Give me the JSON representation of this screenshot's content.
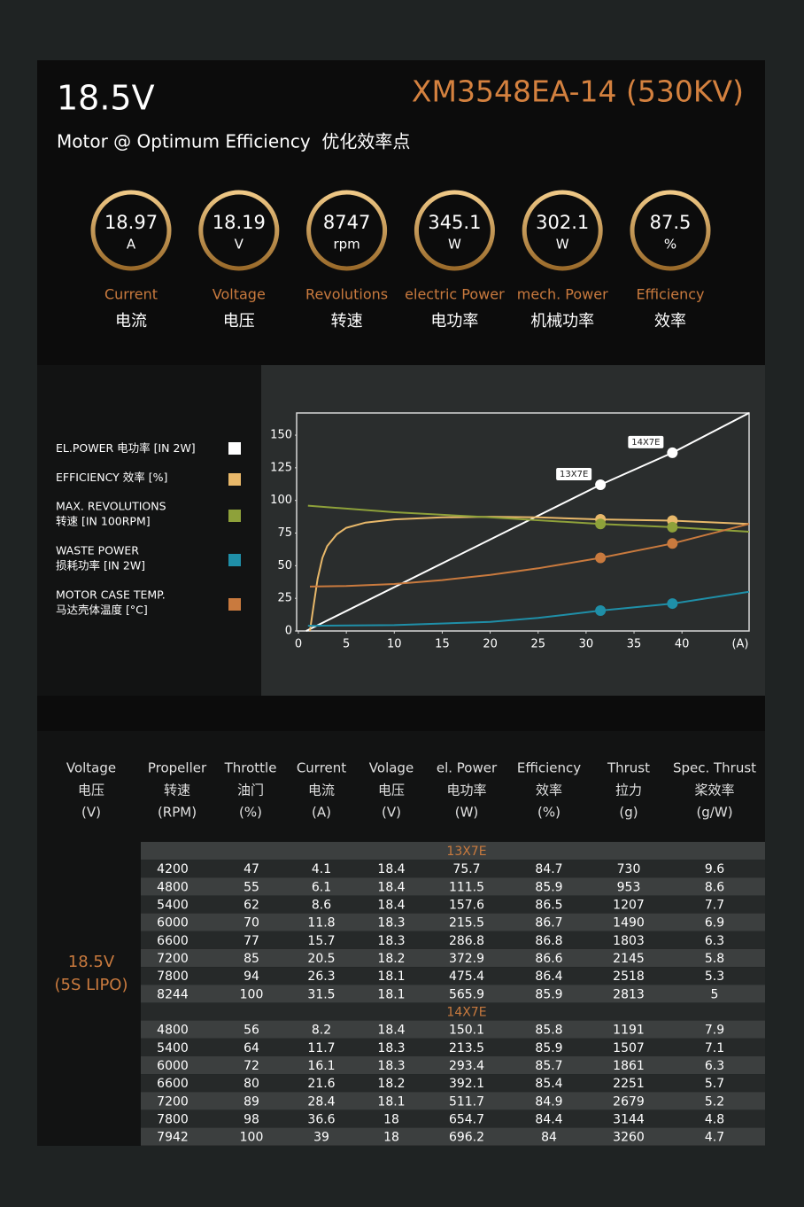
{
  "header": {
    "voltage": "18.5V",
    "model": "XM3548EA-14 (530KV)",
    "subtitle": "Motor @ Optimum Efficiency  优化效率点"
  },
  "gauges": [
    {
      "value": 18.97,
      "unit": "A",
      "label_en": "Current",
      "label_zh": "电流"
    },
    {
      "value": 18.19,
      "unit": "V",
      "label_en": "Voltage",
      "label_zh": "电压"
    },
    {
      "value": 8747,
      "unit": "rpm",
      "label_en": "Revolutions",
      "label_zh": "转速"
    },
    {
      "value": 345.1,
      "unit": "W",
      "label_en": "electric Power",
      "label_zh": "电功率"
    },
    {
      "value": 302.1,
      "unit": "W",
      "label_en": "mech. Power",
      "label_zh": "机械功率"
    },
    {
      "value": 87.5,
      "unit": "%",
      "label_en": "Efficiency",
      "label_zh": "效率"
    }
  ],
  "chart_data": {
    "type": "line",
    "xlim": [
      0,
      47
    ],
    "ylim": [
      0,
      167
    ],
    "xticks": [
      0,
      5,
      10,
      15,
      20,
      25,
      30,
      35,
      40
    ],
    "yticks": [
      0,
      25,
      50,
      75,
      100,
      125,
      150
    ],
    "x_label": "(A)",
    "marker_x": [
      31.5,
      39
    ],
    "annotations": [
      {
        "text": "13X7E",
        "x": 31.5,
        "y": 112
      },
      {
        "text": "14X7E",
        "x": 39,
        "y": 136.5
      }
    ],
    "series": [
      {
        "name": "EL.POWER 电功率 [IN 2W]",
        "color": "#ffffff",
        "x": [
          0.8,
          31.5,
          39,
          47
        ],
        "values": [
          0,
          112,
          136.5,
          167
        ]
      },
      {
        "name": "EFFICIENCY 效率 [%]",
        "color": "#e8b86a",
        "x": [
          1.2,
          1.6,
          2,
          2.5,
          3,
          4,
          5,
          7,
          10,
          15,
          20,
          25,
          31.5,
          39,
          47
        ],
        "values": [
          0,
          20,
          40,
          56,
          65,
          74,
          79,
          83,
          85.5,
          87,
          87.5,
          87,
          85.5,
          84.5,
          82
        ]
      },
      {
        "name": "MAX. REVOLUTIONS\n转速 [IN 100RPM]",
        "color": "#8ea13a",
        "x": [
          1,
          10,
          20,
          31.5,
          39,
          47
        ],
        "values": [
          96,
          91,
          87,
          82,
          79.5,
          76
        ]
      },
      {
        "name": "WASTE POWER\n损耗功率 [IN 2W]",
        "color": "#1f8fa8",
        "x": [
          1,
          10,
          20,
          25,
          31.5,
          39,
          47
        ],
        "values": [
          4,
          4.5,
          7,
          10,
          15.6,
          21,
          30
        ]
      },
      {
        "name": "MOTOR CASE TEMP.\n马达壳体温度 [°C]",
        "color": "#c97a3e",
        "x": [
          1.2,
          5,
          10,
          15,
          20,
          25,
          31.5,
          39,
          47
        ],
        "values": [
          34,
          34.5,
          36,
          39,
          43,
          48,
          56,
          67,
          82
        ]
      }
    ]
  },
  "table": {
    "headers": [
      [
        "Voltage",
        "电压",
        "(V)"
      ],
      [
        "Propeller",
        "转速",
        "(RPM)"
      ],
      [
        "Throttle",
        "油门",
        "(%)"
      ],
      [
        "Current",
        "电流",
        "(A)"
      ],
      [
        "Volage",
        "电压",
        "(V)"
      ],
      [
        "el. Power",
        "电功率",
        "(W)"
      ],
      [
        "Efficiency",
        "效率",
        "(%)"
      ],
      [
        "Thrust",
        "拉力",
        "(g)"
      ],
      [
        "Spec. Thrust",
        "桨效率",
        "(g/W)"
      ]
    ],
    "voltage_label": [
      "18.5V",
      "(5S LIPO)"
    ],
    "groups": [
      {
        "name": "13X7E",
        "rows": [
          [
            4200,
            47,
            4.1,
            18.4,
            75.7,
            84.7,
            730,
            9.6
          ],
          [
            4800,
            55,
            6.1,
            18.4,
            111.5,
            85.9,
            953,
            8.6
          ],
          [
            5400,
            62,
            8.6,
            18.4,
            157.6,
            86.5,
            1207,
            7.7
          ],
          [
            6000,
            70,
            11.8,
            18.3,
            215.5,
            86.7,
            1490,
            6.9
          ],
          [
            6600,
            77,
            15.7,
            18.3,
            286.8,
            86.8,
            1803,
            6.3
          ],
          [
            7200,
            85,
            20.5,
            18.2,
            372.9,
            86.6,
            2145,
            5.8
          ],
          [
            7800,
            94,
            26.3,
            18.1,
            475.4,
            86.4,
            2518,
            5.3
          ],
          [
            8244,
            100,
            31.5,
            18.1,
            565.9,
            85.9,
            2813,
            5
          ]
        ]
      },
      {
        "name": "14X7E",
        "rows": [
          [
            4800,
            56,
            8.2,
            18.4,
            150.1,
            85.8,
            1191,
            7.9
          ],
          [
            5400,
            64,
            11.7,
            18.3,
            213.5,
            85.9,
            1507,
            7.1
          ],
          [
            6000,
            72,
            16.1,
            18.3,
            293.4,
            85.7,
            1861,
            6.3
          ],
          [
            6600,
            80,
            21.6,
            18.2,
            392.1,
            85.4,
            2251,
            5.7
          ],
          [
            7200,
            89,
            28.4,
            18.1,
            511.7,
            84.9,
            2679,
            5.2
          ],
          [
            7800,
            98,
            36.6,
            18,
            654.7,
            84.4,
            3144,
            4.8
          ],
          [
            7942,
            100,
            39,
            18,
            696.2,
            84,
            3260,
            4.7
          ]
        ]
      }
    ]
  }
}
